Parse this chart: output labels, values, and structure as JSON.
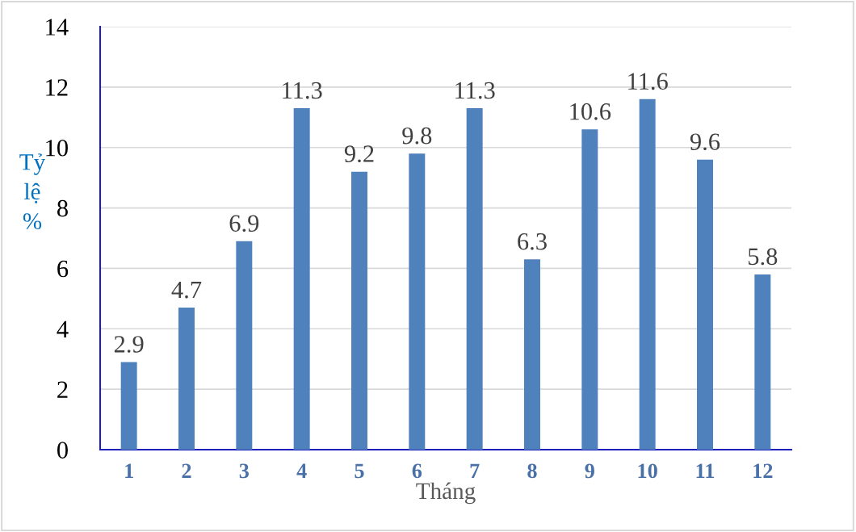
{
  "chart_data": {
    "type": "bar",
    "xlabel": "Tháng",
    "ylabel": "Tỷ lệ %",
    "categories": [
      "1",
      "2",
      "3",
      "4",
      "5",
      "6",
      "7",
      "8",
      "9",
      "10",
      "11",
      "12"
    ],
    "values": [
      2.9,
      4.7,
      6.9,
      11.3,
      9.2,
      9.8,
      11.3,
      6.3,
      10.6,
      11.6,
      9.6,
      5.8
    ],
    "color": "#4f81bd",
    "ylim": [
      0,
      14
    ],
    "yticks": [
      0,
      2,
      4,
      6,
      8,
      10,
      12,
      14
    ],
    "grid": "y",
    "data_labels": true,
    "legend": false
  }
}
